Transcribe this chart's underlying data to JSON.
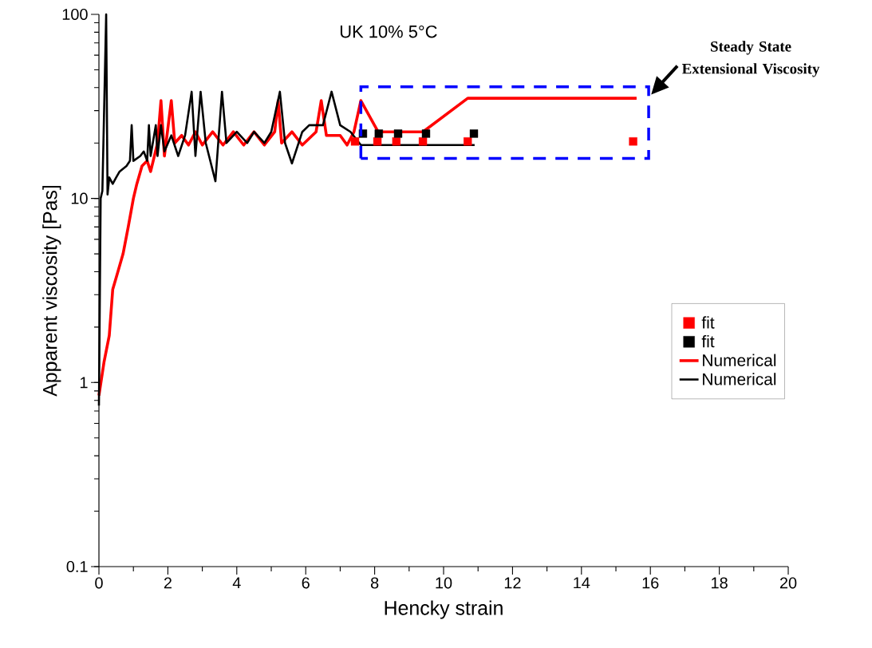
{
  "chart_data": {
    "type": "line",
    "title": "UK 10% 5°C",
    "xlabel": "Hencky strain",
    "ylabel": "Apparent viscosity [Pas]",
    "xlim": [
      0,
      20
    ],
    "xticks": [
      0,
      2,
      4,
      6,
      8,
      10,
      12,
      14,
      16,
      18,
      20
    ],
    "ylim": [
      0.1,
      100
    ],
    "yticks": [
      0.1,
      1,
      10,
      100
    ],
    "log": "y",
    "legend": "right",
    "grid": false,
    "annotations": [
      "Steady State Extensional Viscosity"
    ],
    "series": [
      {
        "name": "fit",
        "type": "scatter",
        "marker": "square",
        "color": "#ff0000",
        "x": [
          7.43,
          8.08,
          8.63,
          9.4,
          10.7,
          15.5
        ],
        "values": [
          20.4,
          20.4,
          20.4,
          20.4,
          20.4,
          20.4
        ]
      },
      {
        "name": "fit",
        "type": "scatter",
        "marker": "square",
        "color": "#000000",
        "x": [
          7.66,
          8.12,
          8.68,
          9.49,
          10.88
        ],
        "values": [
          22.5,
          22.5,
          22.5,
          22.5,
          22.5
        ]
      },
      {
        "name": "Numerical",
        "color": "#ff0000",
        "x": [
          0,
          0.15,
          0.3,
          0.4,
          0.55,
          0.7,
          0.85,
          1.0,
          1.1,
          1.25,
          1.4,
          1.5,
          1.7,
          1.8,
          1.9,
          2.1,
          2.2,
          2.4,
          2.6,
          2.8,
          3.0,
          3.3,
          3.6,
          3.9,
          4.2,
          4.5,
          4.8,
          5.1,
          5.2,
          5.3,
          5.6,
          5.9,
          6.3,
          6.45,
          6.6,
          7.0,
          7.2,
          7.4,
          7.6,
          8.1,
          9.4,
          10.7,
          15.6
        ],
        "values": [
          0.85,
          1.3,
          1.8,
          3.2,
          4,
          5,
          7,
          10,
          12,
          15,
          16,
          14,
          20,
          34,
          17,
          34,
          20,
          22,
          19.5,
          23,
          19.5,
          23,
          19.5,
          23,
          19.5,
          23,
          19.5,
          23,
          34,
          20,
          23,
          19.5,
          23,
          34,
          22,
          22,
          19.5,
          23,
          34,
          23,
          23,
          35,
          35
        ]
      },
      {
        "name": "Numerical",
        "color": "#000000",
        "x": [
          0,
          0.05,
          0.1,
          0.21,
          0.25,
          0.3,
          0.4,
          0.5,
          0.6,
          0.8,
          0.9,
          0.95,
          1.0,
          1.2,
          1.3,
          1.4,
          1.45,
          1.5,
          1.65,
          1.7,
          1.8,
          1.9,
          2.1,
          2.3,
          2.5,
          2.69,
          2.8,
          2.95,
          3.1,
          3.38,
          3.57,
          3.7,
          4.0,
          4.3,
          4.5,
          4.8,
          5.0,
          5.25,
          5.4,
          5.6,
          5.9,
          6.1,
          6.5,
          6.75,
          7.0,
          7.3,
          7.6,
          10.9
        ],
        "values": [
          0.75,
          10,
          11,
          100,
          10.5,
          13,
          12,
          13,
          14,
          15,
          16,
          25,
          16,
          17,
          18,
          16,
          25,
          17,
          25,
          17,
          25,
          18,
          22,
          17,
          22,
          38,
          17,
          38,
          20,
          12.4,
          38,
          20,
          23,
          20,
          23,
          20,
          23,
          38,
          20,
          15.5,
          23,
          25,
          25,
          38,
          25,
          23,
          19.5,
          19.5
        ]
      }
    ]
  }
}
